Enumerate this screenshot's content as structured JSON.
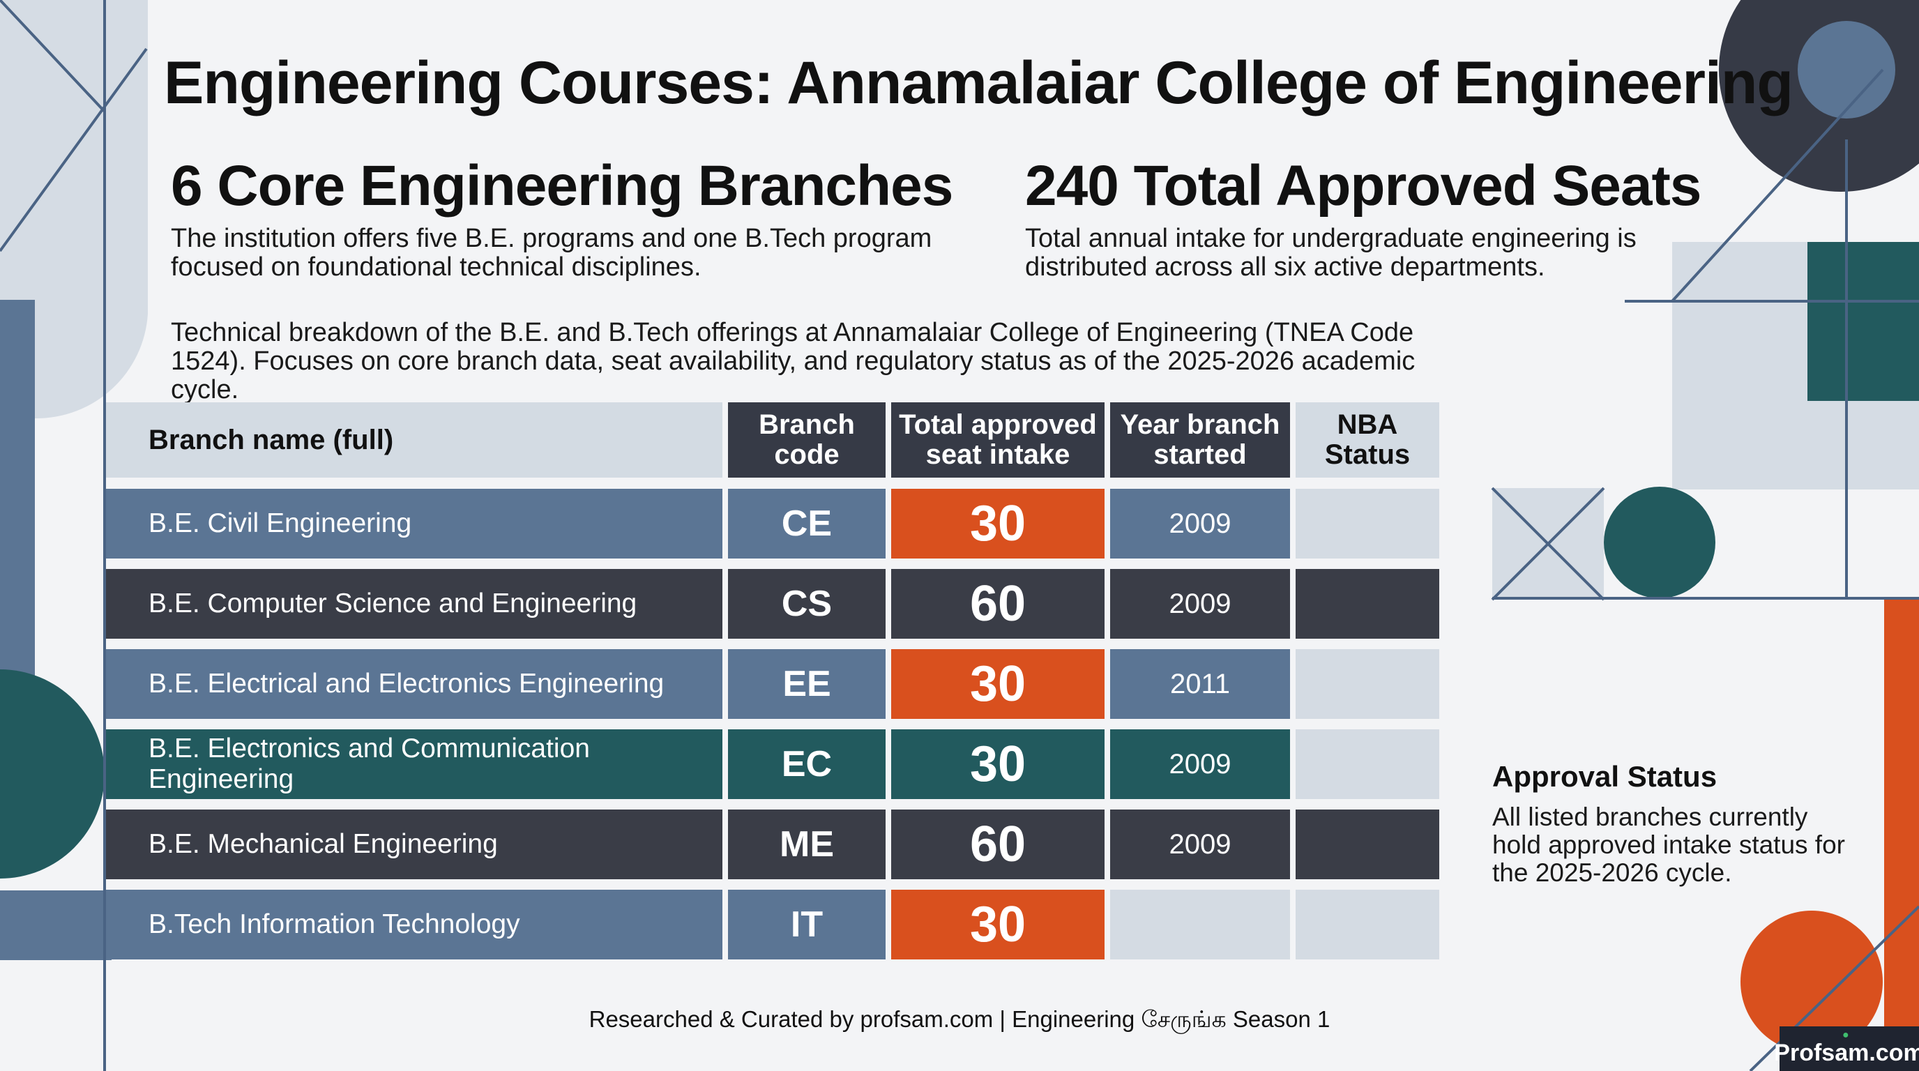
{
  "title": "Engineering Courses: Annamalaiar College of Engineering",
  "stats": [
    {
      "heading": "6 Core Engineering Branches",
      "text": "The institution offers five B.E. programs and one B.Tech program focused on foundational technical disciplines."
    },
    {
      "heading": "240 Total Approved Seats",
      "text": "Total annual intake for undergraduate engineering is distributed across all six active departments."
    }
  ],
  "description": "Technical breakdown of the B.E. and B.Tech offerings at Annamalaiar College of Engineering (TNEA Code 1524). Focuses on core branch data, seat availability, and regulatory status as of the 2025-2026 academic cycle.",
  "table": {
    "headers": [
      "Branch name (full)",
      "Branch code",
      "Total approved seat intake",
      "Year branch started",
      "NBA Status"
    ],
    "rows": [
      {
        "name": "B.E. Civil Engineering",
        "code": "CE",
        "seats": "30",
        "year": "2009",
        "nba": ""
      },
      {
        "name": "B.E. Computer Science and Engineering",
        "code": "CS",
        "seats": "60",
        "year": "2009",
        "nba": ""
      },
      {
        "name": "B.E. Electrical and Electronics Engineering",
        "code": "EE",
        "seats": "30",
        "year": "2011",
        "nba": ""
      },
      {
        "name": "B.E. Electronics and Communication Engineering",
        "code": "EC",
        "seats": "30",
        "year": "2009",
        "nba": ""
      },
      {
        "name": "B.E. Mechanical Engineering",
        "code": "ME",
        "seats": "60",
        "year": "2009",
        "nba": ""
      },
      {
        "name": "B.Tech Information Technology",
        "code": "IT",
        "seats": "30",
        "year": "",
        "nba": ""
      }
    ]
  },
  "approval": {
    "heading": "Approval Status",
    "text": "All listed branches currently hold approved intake status for the 2025-2026 cycle."
  },
  "footer": "Researched & Curated by profsam.com | Engineering சேருங்க Season 1",
  "brand": "Profsam.com",
  "colors": {
    "slate_blue": "#5b7594",
    "charcoal": "#3a3d47",
    "teal": "#225a5e",
    "orange": "#d9501e",
    "light_gray": "#d4dbe3",
    "header_light": "#d3dbe3"
  }
}
